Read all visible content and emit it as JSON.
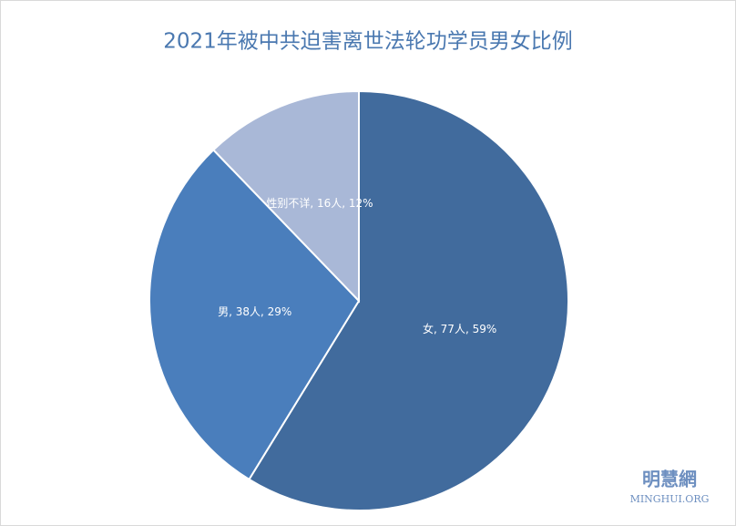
{
  "chart_data": {
    "type": "pie",
    "title": "2021年被中共迫害离世法轮功学员男女比例",
    "values": [
      77,
      38,
      16
    ],
    "value_labels": [
      "女, 77人, 59%",
      "男, 38人, 29%",
      "性别不详, 16人, 12%"
    ],
    "colors": [
      "#416b9d",
      "#4a7ebc",
      "#a9b8d7"
    ],
    "start_angle": 0,
    "direction": "clockwise"
  },
  "watermark": {
    "name": "明慧網",
    "site": "MINGHUI.ORG"
  }
}
